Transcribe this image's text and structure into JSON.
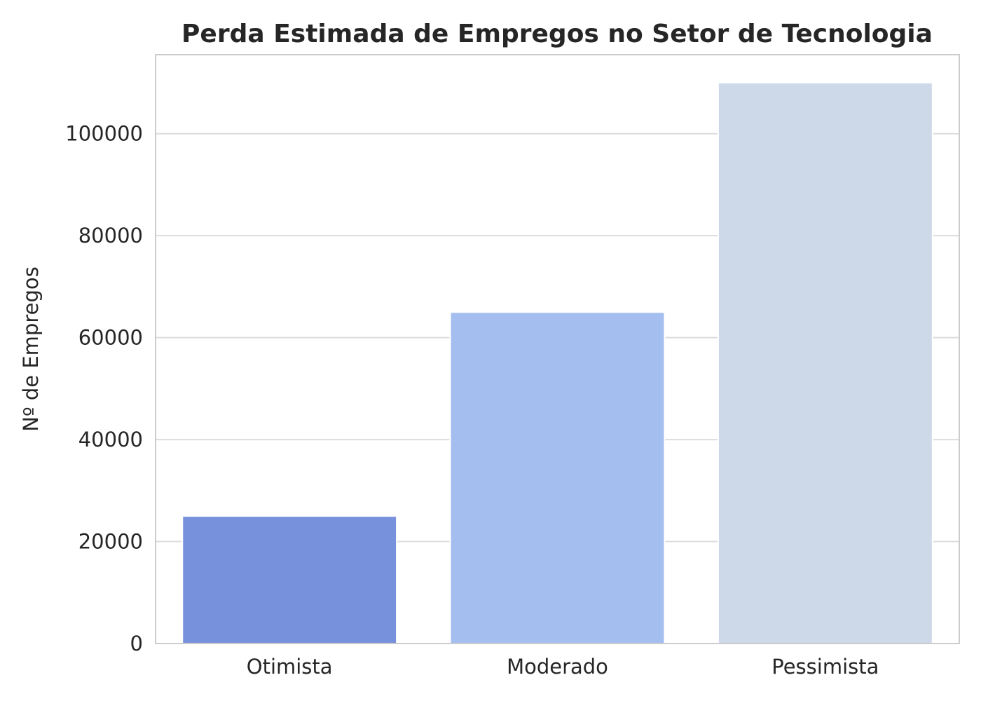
{
  "chart_data": {
    "type": "bar",
    "title": "Perda Estimada de Empregos no Setor de Tecnologia",
    "xlabel": "",
    "ylabel": "Nº de Empregos",
    "categories": [
      "Otimista",
      "Moderado",
      "Pessimista"
    ],
    "values": [
      25000,
      65000,
      110000
    ],
    "colors": [
      "#7891dd",
      "#a4beef",
      "#cdd8e9"
    ],
    "ylim": [
      0,
      115500
    ],
    "yticks": [
      0,
      20000,
      40000,
      60000,
      80000,
      100000
    ],
    "ytick_labels": [
      "0",
      "20000",
      "40000",
      "60000",
      "80000",
      "100000"
    ],
    "grid": "horizontal",
    "grid_color": "#dcdcdc",
    "spine_color": "#cccccc",
    "text_color": "#262626"
  }
}
